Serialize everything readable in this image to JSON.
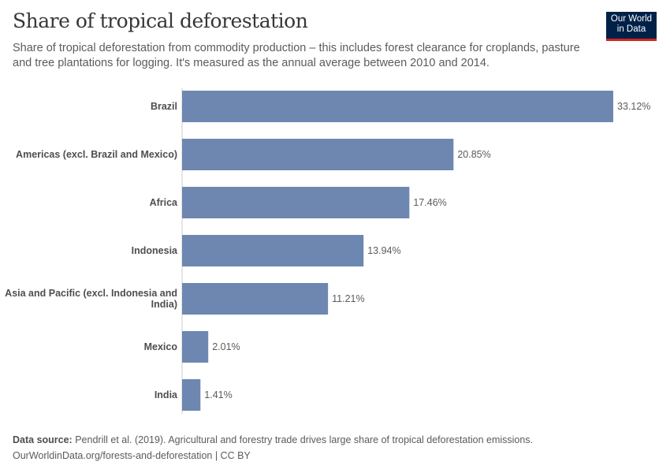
{
  "header": {
    "title": "Share of tropical deforestation",
    "subtitle": "Share of tropical deforestation from commodity production – this includes forest clearance for croplands, pasture and tree plantations for logging. It's measured as the annual average between 2010 and 2014.",
    "logo": "Our World in Data"
  },
  "chart_data": {
    "type": "bar",
    "orientation": "horizontal",
    "categories": [
      "Brazil",
      "Americas (excl. Brazil and Mexico)",
      "Africa",
      "Indonesia",
      "Asia and Pacific (excl. Indonesia and India)",
      "Mexico",
      "India"
    ],
    "values": [
      33.12,
      20.85,
      17.46,
      13.94,
      11.21,
      2.01,
      1.41
    ],
    "data_labels": [
      "33.12%",
      "20.85%",
      "17.46%",
      "13.94%",
      "11.21%",
      "2.01%",
      "1.41%"
    ],
    "unit": "%",
    "xlim": [
      0,
      33.12
    ],
    "grid": false,
    "bar_color": "#6d87b1"
  },
  "footer": {
    "source_label": "Data source:",
    "source": "Pendrill et al. (2019). Agricultural and forestry trade drives large share of tropical deforestation emissions.",
    "url": "OurWorldinData.org/forests-and-deforestation | CC BY"
  }
}
